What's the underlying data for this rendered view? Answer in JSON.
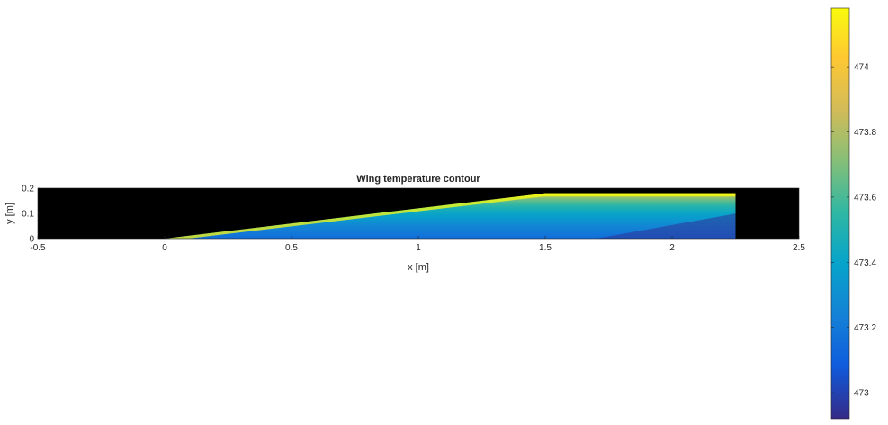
{
  "chart_data": {
    "type": "heatmap",
    "title": "Wing temperature contour",
    "xlabel": "x [m]",
    "ylabel": "y [m]",
    "xlim": [
      -0.5,
      2.5
    ],
    "ylim": [
      0,
      0.2
    ],
    "xticks": [
      "-0.5",
      "0",
      "0.5",
      "1",
      "1.5",
      "2",
      "2.5"
    ],
    "yticks": [
      "0",
      "0.1",
      "0.2"
    ],
    "background": "#000000",
    "region": {
      "polygon": [
        [
          0,
          0
        ],
        [
          1.5,
          0.18
        ],
        [
          2.25,
          0.18
        ],
        [
          2.25,
          0
        ]
      ],
      "value_range": [
        472.95,
        474.2
      ],
      "note_top_value": 474.2,
      "note_bottom_value": 473.15,
      "tip_bottom_value": 472.95
    },
    "colorbar": {
      "colormap": "parula",
      "range": [
        472.92,
        474.18
      ],
      "ticks": [
        "473",
        "473.2",
        "473.4",
        "473.6",
        "473.8",
        "474"
      ],
      "location": "right"
    },
    "grid": false
  }
}
